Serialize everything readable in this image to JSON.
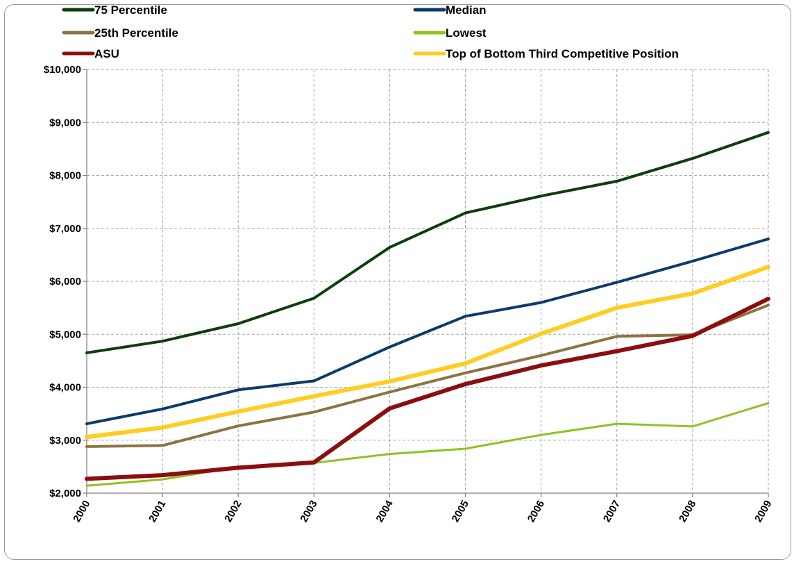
{
  "chart_data": {
    "type": "line",
    "title": "",
    "xlabel": "",
    "ylabel": "",
    "x": [
      "2000",
      "2001",
      "2002",
      "2003",
      "2004",
      "2005",
      "2006",
      "2007",
      "2008",
      "2009"
    ],
    "ylim": [
      2000,
      10000
    ],
    "yticks": [
      2000,
      3000,
      4000,
      5000,
      6000,
      7000,
      8000,
      9000,
      10000
    ],
    "ytick_labels": [
      "$2,000",
      "$3,000",
      "$4,000",
      "$5,000",
      "$6,000",
      "$7,000",
      "$8,000",
      "$9,000",
      "$10,000"
    ],
    "grid": true,
    "legend_position": "top",
    "series": [
      {
        "name": "75 Percentile",
        "color": "#0d3d0d",
        "values": [
          4650,
          4870,
          5200,
          5680,
          6640,
          7290,
          7610,
          7890,
          8320,
          8810
        ]
      },
      {
        "name": "Median",
        "color": "#0e3a6b",
        "values": [
          3310,
          3590,
          3950,
          4120,
          4760,
          5340,
          5600,
          5980,
          6380,
          6800
        ]
      },
      {
        "name": "25th Percentile",
        "color": "#8c7340",
        "values": [
          2880,
          2900,
          3270,
          3530,
          3910,
          4270,
          4600,
          4960,
          4990,
          5550
        ]
      },
      {
        "name": "Lowest",
        "color": "#8fc31f",
        "values": [
          2140,
          2260,
          2490,
          2570,
          2740,
          2840,
          3100,
          3310,
          3260,
          3700
        ]
      },
      {
        "name": "ASU",
        "color": "#8b0e0e",
        "values": [
          2270,
          2340,
          2480,
          2580,
          3600,
          4060,
          4410,
          4680,
          4970,
          5670
        ]
      },
      {
        "name": "Top of Bottom Third Competitive Position",
        "color": "#ffcc22",
        "values": [
          3060,
          3240,
          3540,
          3830,
          4110,
          4450,
          5010,
          5500,
          5770,
          6270
        ]
      }
    ]
  }
}
